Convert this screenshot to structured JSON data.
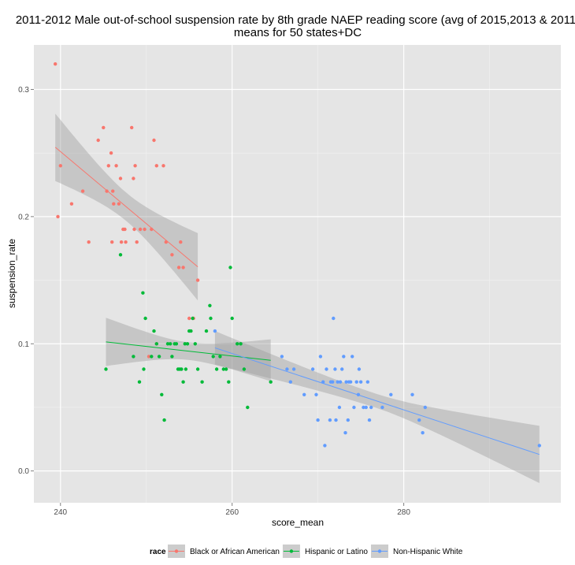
{
  "chart_data": {
    "type": "scatter",
    "title_line1": "2011-2012 Male out-of-school suspension rate by 8th grade NAEP reading score (avg of 2015,2013 & 2011)",
    "title_line2": "means for 50 states+DC",
    "xlabel": "score_mean",
    "ylabel": "suspension_rate",
    "xlim": [
      236.9,
      298.3
    ],
    "ylim": [
      -0.025,
      0.335
    ],
    "x_ticks": [
      240,
      260,
      280
    ],
    "y_ticks": [
      0.0,
      0.1,
      0.2,
      0.3
    ],
    "x_tick_labels": [
      "240",
      "260",
      "280"
    ],
    "y_tick_labels": [
      "0.0",
      "0.1",
      "0.2",
      "0.3"
    ],
    "grid": true,
    "legend_position": "bottom",
    "legend_title": "race",
    "series": [
      {
        "name": "Black or African American",
        "color": "#F8766D",
        "points": [
          [
            239.4,
            0.32
          ],
          [
            239.7,
            0.2
          ],
          [
            240.0,
            0.24
          ],
          [
            241.3,
            0.21
          ],
          [
            242.6,
            0.22
          ],
          [
            243.3,
            0.18
          ],
          [
            244.4,
            0.26
          ],
          [
            245.0,
            0.27
          ],
          [
            245.4,
            0.22
          ],
          [
            245.6,
            0.24
          ],
          [
            245.9,
            0.25
          ],
          [
            246.0,
            0.18
          ],
          [
            246.1,
            0.22
          ],
          [
            246.2,
            0.21
          ],
          [
            246.5,
            0.24
          ],
          [
            246.8,
            0.21
          ],
          [
            247.0,
            0.23
          ],
          [
            247.1,
            0.18
          ],
          [
            247.3,
            0.19
          ],
          [
            247.5,
            0.19
          ],
          [
            247.6,
            0.18
          ],
          [
            248.3,
            0.27
          ],
          [
            248.5,
            0.23
          ],
          [
            248.6,
            0.19
          ],
          [
            248.7,
            0.24
          ],
          [
            248.9,
            0.18
          ],
          [
            249.3,
            0.19
          ],
          [
            249.8,
            0.19
          ],
          [
            250.6,
            0.19
          ],
          [
            250.9,
            0.26
          ],
          [
            251.2,
            0.24
          ],
          [
            252.0,
            0.24
          ],
          [
            252.3,
            0.18
          ],
          [
            253.0,
            0.17
          ],
          [
            253.8,
            0.16
          ],
          [
            254.0,
            0.18
          ],
          [
            254.3,
            0.16
          ],
          [
            255.5,
            0.12
          ],
          [
            256.0,
            0.15
          ],
          [
            250.3,
            0.09
          ],
          [
            251.2,
            0.1
          ],
          [
            255.0,
            0.12
          ]
        ],
        "fit": {
          "x": [
            239.4,
            256.0
          ],
          "y": [
            0.2545,
            0.1605
          ],
          "ci_lo_start": 0.2285,
          "ci_hi_start": 0.2815,
          "ci_lo_end": 0.1335,
          "ci_hi_end": 0.1865
        }
      },
      {
        "name": "Hispanic or Latino",
        "color": "#00BA38",
        "points": [
          [
            245.3,
            0.08
          ],
          [
            247.0,
            0.17
          ],
          [
            248.5,
            0.09
          ],
          [
            249.2,
            0.07
          ],
          [
            249.6,
            0.14
          ],
          [
            249.7,
            0.08
          ],
          [
            249.9,
            0.12
          ],
          [
            250.6,
            0.09
          ],
          [
            250.9,
            0.11
          ],
          [
            251.2,
            0.1
          ],
          [
            251.5,
            0.09
          ],
          [
            251.8,
            0.06
          ],
          [
            252.1,
            0.04
          ],
          [
            252.5,
            0.1
          ],
          [
            252.8,
            0.1
          ],
          [
            253.0,
            0.09
          ],
          [
            253.3,
            0.1
          ],
          [
            253.5,
            0.1
          ],
          [
            253.7,
            0.08
          ],
          [
            253.9,
            0.08
          ],
          [
            254.1,
            0.08
          ],
          [
            254.3,
            0.07
          ],
          [
            254.5,
            0.1
          ],
          [
            254.6,
            0.08
          ],
          [
            254.8,
            0.1
          ],
          [
            255.0,
            0.11
          ],
          [
            255.2,
            0.11
          ],
          [
            255.4,
            0.12
          ],
          [
            255.7,
            0.1
          ],
          [
            256.0,
            0.08
          ],
          [
            256.5,
            0.07
          ],
          [
            257.0,
            0.11
          ],
          [
            257.4,
            0.13
          ],
          [
            257.5,
            0.12
          ],
          [
            257.8,
            0.09
          ],
          [
            258.2,
            0.08
          ],
          [
            258.6,
            0.09
          ],
          [
            259.0,
            0.08
          ],
          [
            259.3,
            0.08
          ],
          [
            259.6,
            0.07
          ],
          [
            259.8,
            0.16
          ],
          [
            260.0,
            0.12
          ],
          [
            260.6,
            0.1
          ],
          [
            261.0,
            0.1
          ],
          [
            261.4,
            0.08
          ],
          [
            261.8,
            0.05
          ],
          [
            264.5,
            0.07
          ]
        ],
        "fit": {
          "x": [
            245.3,
            264.5
          ],
          "y": [
            0.1015,
            0.087
          ],
          "ci_lo_start": 0.0825,
          "ci_hi_start": 0.1205,
          "ci_lo_end": 0.072,
          "ci_hi_end": 0.105
        }
      },
      {
        "name": "Non-Hispanic White",
        "color": "#619CFF",
        "points": [
          [
            258.0,
            0.11
          ],
          [
            265.8,
            0.09
          ],
          [
            266.4,
            0.08
          ],
          [
            266.8,
            0.07
          ],
          [
            267.2,
            0.08
          ],
          [
            268.4,
            0.06
          ],
          [
            269.4,
            0.08
          ],
          [
            269.8,
            0.06
          ],
          [
            270.0,
            0.04
          ],
          [
            270.3,
            0.09
          ],
          [
            270.6,
            0.07
          ],
          [
            270.8,
            0.02
          ],
          [
            271.0,
            0.08
          ],
          [
            271.4,
            0.04
          ],
          [
            271.5,
            0.07
          ],
          [
            271.7,
            0.07
          ],
          [
            271.8,
            0.12
          ],
          [
            272.0,
            0.08
          ],
          [
            272.1,
            0.04
          ],
          [
            272.3,
            0.07
          ],
          [
            272.5,
            0.05
          ],
          [
            272.6,
            0.07
          ],
          [
            272.8,
            0.08
          ],
          [
            273.0,
            0.09
          ],
          [
            273.2,
            0.03
          ],
          [
            273.3,
            0.07
          ],
          [
            273.5,
            0.04
          ],
          [
            273.6,
            0.07
          ],
          [
            273.8,
            0.07
          ],
          [
            274.0,
            0.09
          ],
          [
            274.2,
            0.05
          ],
          [
            274.5,
            0.07
          ],
          [
            274.7,
            0.06
          ],
          [
            274.8,
            0.08
          ],
          [
            275.0,
            0.07
          ],
          [
            275.3,
            0.05
          ],
          [
            275.6,
            0.05
          ],
          [
            275.8,
            0.07
          ],
          [
            276.0,
            0.04
          ],
          [
            276.2,
            0.05
          ],
          [
            277.5,
            0.05
          ],
          [
            278.5,
            0.06
          ],
          [
            281.0,
            0.06
          ],
          [
            281.8,
            0.04
          ],
          [
            282.2,
            0.03
          ],
          [
            282.5,
            0.05
          ],
          [
            295.8,
            0.02
          ]
        ],
        "fit": {
          "x": [
            258.0,
            295.8
          ],
          "y": [
            0.0968,
            0.013
          ],
          "ci_lo_start": 0.0835,
          "ci_hi_start": 0.11,
          "ci_lo_end": -0.0095,
          "ci_hi_end": 0.0355
        }
      }
    ]
  }
}
